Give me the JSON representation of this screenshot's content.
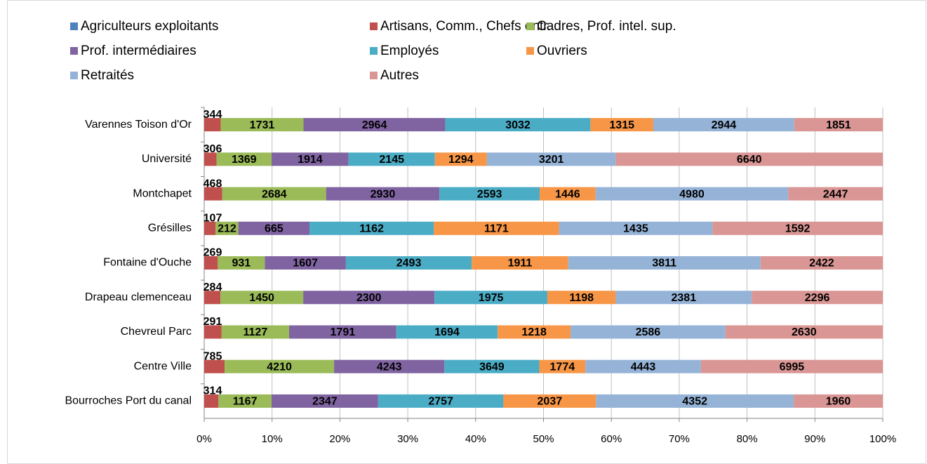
{
  "chart_data": {
    "type": "bar_stacked_percent",
    "categories": [
      "Varennes Toison d'Or",
      "Université",
      "Montchapet",
      "Grésilles",
      "Fontaine d'Ouche",
      "Drapeau clemenceau",
      "Chevreul Parc",
      "Centre Ville",
      "Bourroches Port du canal"
    ],
    "series": [
      {
        "name": "Agriculteurs exploitants",
        "color": "#4f81bd",
        "values": [
          0,
          0,
          0,
          0,
          0,
          0,
          0,
          0,
          0
        ]
      },
      {
        "name": "Artisans, Comm., Chefs entr.",
        "color": "#c0504d",
        "values": [
          344,
          306,
          468,
          107,
          269,
          284,
          291,
          785,
          314
        ]
      },
      {
        "name": "Cadres, Prof. intel. sup.",
        "color": "#9bbb59",
        "values": [
          1731,
          1369,
          2684,
          212,
          931,
          1450,
          1127,
          4210,
          1167
        ]
      },
      {
        "name": "Prof. intermédiaires",
        "color": "#8064a2",
        "values": [
          2964,
          1914,
          2930,
          665,
          1607,
          2300,
          1791,
          4243,
          2347
        ]
      },
      {
        "name": "Employés",
        "color": "#4bacc6",
        "values": [
          3032,
          2145,
          2593,
          1162,
          2493,
          1975,
          1694,
          3649,
          2757
        ]
      },
      {
        "name": "Ouvriers",
        "color": "#f79646",
        "values": [
          1315,
          1294,
          1446,
          1171,
          1911,
          1198,
          1218,
          1774,
          2037
        ]
      },
      {
        "name": "Retraités",
        "color": "#95b3d7",
        "values": [
          2944,
          3201,
          4980,
          1435,
          3811,
          2381,
          2586,
          4443,
          4352
        ]
      },
      {
        "name": "Autres",
        "color": "#d99694",
        "values": [
          1851,
          6640,
          2447,
          1592,
          2422,
          2296,
          2630,
          6995,
          1960
        ]
      }
    ],
    "xlim": [
      0,
      100
    ],
    "xticks": [
      {
        "value": 0,
        "label": "0%"
      },
      {
        "value": 10,
        "label": "10%"
      },
      {
        "value": 20,
        "label": "20%"
      },
      {
        "value": 30,
        "label": "30%"
      },
      {
        "value": 40,
        "label": "40%"
      },
      {
        "value": 50,
        "label": "50%"
      },
      {
        "value": 60,
        "label": "60%"
      },
      {
        "value": 70,
        "label": "70%"
      },
      {
        "value": 80,
        "label": "80%"
      },
      {
        "value": 90,
        "label": "90%"
      },
      {
        "value": 100,
        "label": "100%"
      }
    ],
    "grid": true
  }
}
